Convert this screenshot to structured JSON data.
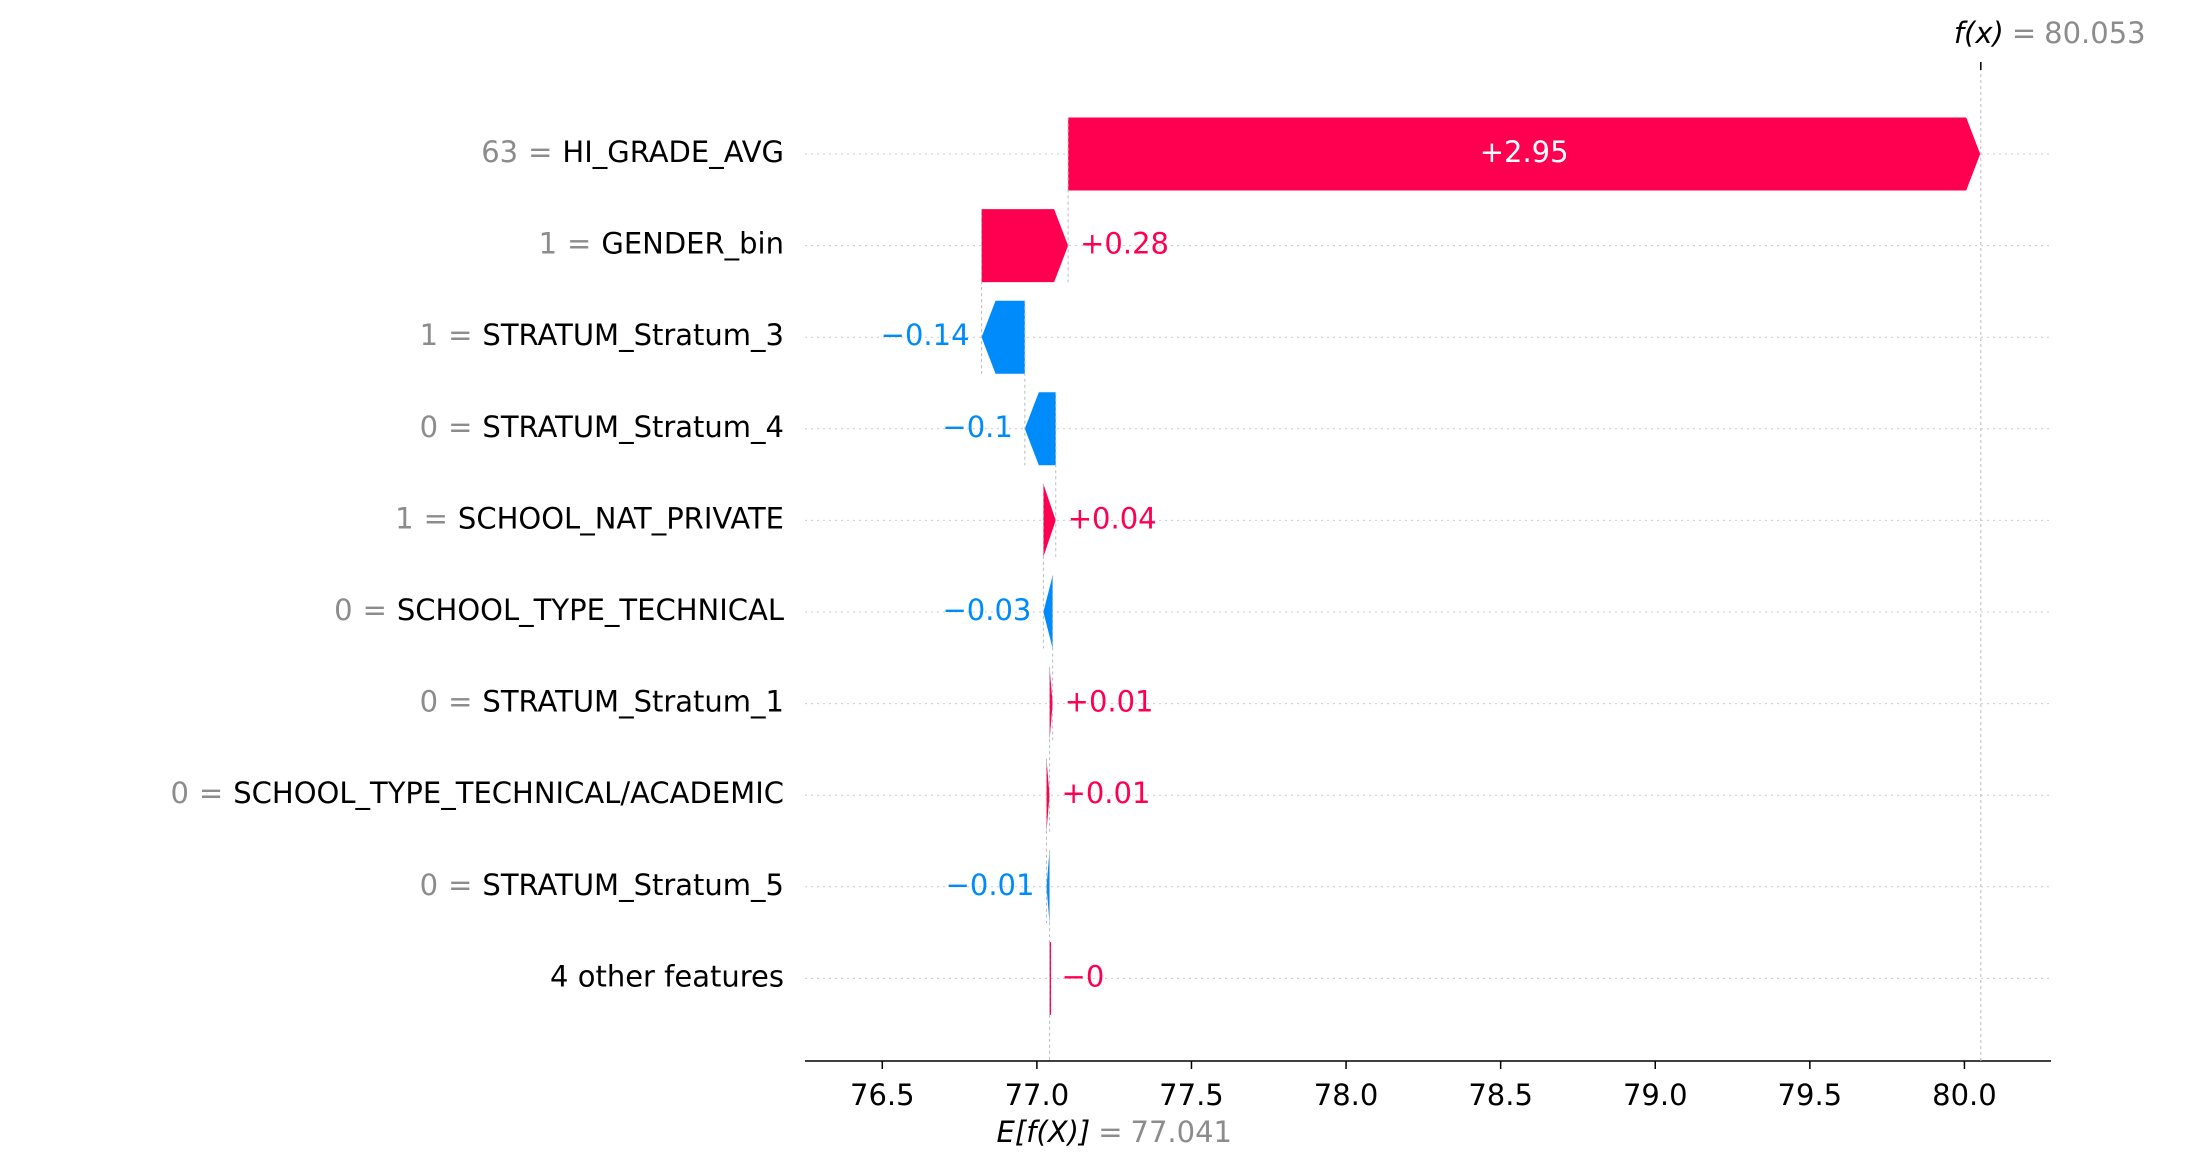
{
  "chart_data": {
    "type": "waterfall",
    "categories": [
      "HI_GRADE_AVG",
      "GENDER_bin",
      "STRATUM_Stratum_3",
      "STRATUM_Stratum_4",
      "SCHOOL_NAT_PRIVATE",
      "SCHOOL_TYPE_TECHNICAL",
      "STRATUM_Stratum_1",
      "SCHOOL_TYPE_TECHNICAL/ACADEMIC",
      "STRATUM_Stratum_5",
      "4 other features"
    ],
    "feature_values": [
      "63",
      "1",
      "1",
      "0",
      "1",
      "0",
      "0",
      "0",
      "0",
      null
    ],
    "separator": "=",
    "values": [
      2.95,
      0.28,
      -0.14,
      -0.1,
      0.04,
      -0.03,
      0.01,
      0.01,
      -0.01,
      0
    ],
    "value_labels": [
      "+2.95",
      "+0.28",
      "−0.14",
      "−0.1",
      "+0.04",
      "−0.03",
      "+0.01",
      "+0.01",
      "−0.01",
      "−0"
    ],
    "positive_color": "#ff0051",
    "negative_color": "#008bfb",
    "fx_label": "f(x)",
    "fx_value": 80.053,
    "base_label": "E[f(X)]",
    "base_value": 77.041,
    "xlim": [
      76.25,
      80.28
    ],
    "xticks": [
      76.5,
      {
        "value": 77,
        "label": "77.0"
      },
      77.5,
      {
        "value": 78,
        "label": "78.0"
      },
      78.5,
      {
        "value": 79,
        "label": "79.0"
      },
      79.5,
      {
        "value": 80,
        "label": "80.0"
      }
    ],
    "grid": true
  }
}
